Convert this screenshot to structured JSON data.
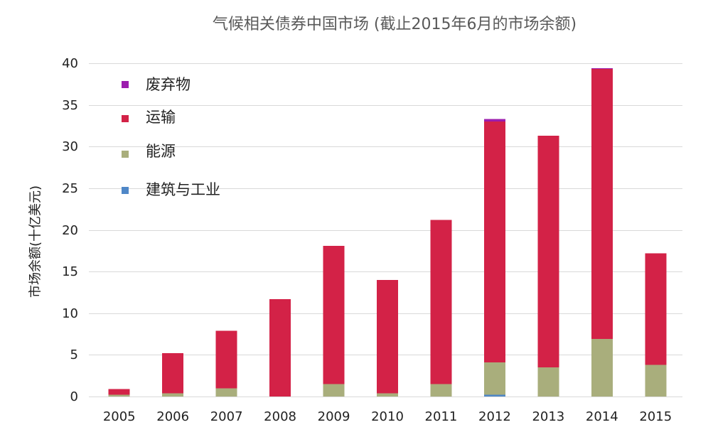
{
  "chart_data": {
    "type": "bar",
    "stacked": true,
    "title": "气候相关债券中国市场 (截止2015年6月的市场余额)",
    "xlabel": "",
    "ylabel": "市场余额(十亿美元)",
    "categories": [
      "2005",
      "2006",
      "2007",
      "2008",
      "2009",
      "2010",
      "2011",
      "2012",
      "2013",
      "2014",
      "2015"
    ],
    "ylim": [
      0,
      40
    ],
    "yticks": [
      0,
      5,
      10,
      15,
      20,
      25,
      30,
      35,
      40
    ],
    "grid": true,
    "legend_position": "top-left",
    "series": [
      {
        "name": "建筑与工业",
        "color": "#4F87C7",
        "values": [
          0,
          0,
          0,
          0,
          0,
          0,
          0,
          0.2,
          0,
          0,
          0
        ]
      },
      {
        "name": "能源",
        "color": "#A9AE7C",
        "values": [
          0.2,
          0.4,
          1.0,
          0,
          1.5,
          0.4,
          1.5,
          3.9,
          3.5,
          6.9,
          3.8
        ]
      },
      {
        "name": "运输",
        "color": "#D32247",
        "values": [
          0.7,
          4.8,
          6.9,
          11.7,
          16.6,
          13.6,
          19.7,
          28.9,
          27.8,
          32.4,
          13.4
        ]
      },
      {
        "name": "废弃物",
        "color": "#9C1DAE",
        "values": [
          0,
          0,
          0,
          0,
          0,
          0,
          0,
          0.3,
          0,
          0.1,
          0
        ]
      }
    ]
  }
}
